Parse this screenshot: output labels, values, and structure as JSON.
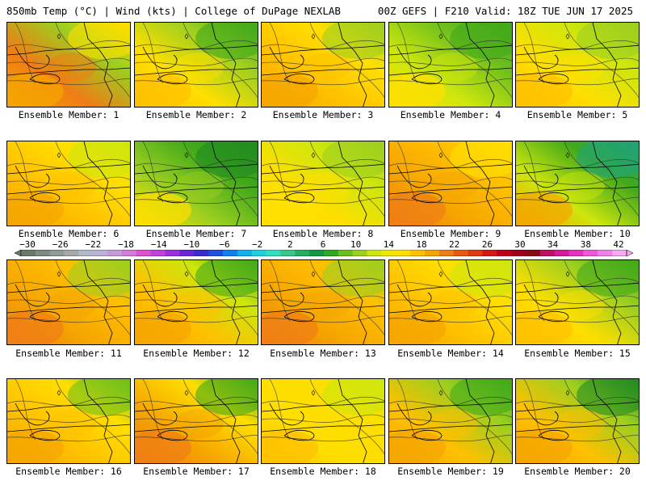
{
  "header": {
    "left_title": "850mb Temp (°C) | Wind (kts) | College of DuPage NEXLAB",
    "right_title": "00Z GEFS | F210 Valid: 18Z TUE JUN 17 2025"
  },
  "members": [
    {
      "label": "Ensemble Member: 1",
      "scheme": [
        "#f5a500",
        "#ef7d15",
        "#9ccf20",
        "#ffdf00"
      ]
    },
    {
      "label": "Ensemble Member: 2",
      "scheme": [
        "#ffc000",
        "#ffdf00",
        "#9ccf20",
        "#41a91a"
      ]
    },
    {
      "label": "Ensemble Member: 3",
      "scheme": [
        "#f5a500",
        "#ffc000",
        "#ffdf00",
        "#9ccf20"
      ]
    },
    {
      "label": "Ensemble Member: 4",
      "scheme": [
        "#ffdf00",
        "#cde60d",
        "#6dbf1d",
        "#41a91a"
      ]
    },
    {
      "label": "Ensemble Member: 5",
      "scheme": [
        "#ffc000",
        "#ffdf00",
        "#cde60d",
        "#9ccf20"
      ]
    },
    {
      "label": "Ensemble Member: 6",
      "scheme": [
        "#f5a500",
        "#ffc000",
        "#ffdf00",
        "#cde60d"
      ]
    },
    {
      "label": "Ensemble Member: 7",
      "scheme": [
        "#ffdf00",
        "#9ccf20",
        "#41a91a",
        "#228b22"
      ]
    },
    {
      "label": "Ensemble Member: 8",
      "scheme": [
        "#ffdf00",
        "#ffdf00",
        "#cde60d",
        "#9ccf20"
      ]
    },
    {
      "label": "Ensemble Member: 9",
      "scheme": [
        "#ef7d15",
        "#f5a500",
        "#ffc000",
        "#ffdf00"
      ]
    },
    {
      "label": "Ensemble Member: 10",
      "scheme": [
        "#f5a500",
        "#cde60d",
        "#41a91a",
        "#1fa37a"
      ]
    },
    {
      "label": "Ensemble Member: 11",
      "scheme": [
        "#ef7d15",
        "#f5a500",
        "#ffc000",
        "#9ccf20"
      ]
    },
    {
      "label": "Ensemble Member: 12",
      "scheme": [
        "#f5a500",
        "#ffc000",
        "#cde60d",
        "#41a91a"
      ]
    },
    {
      "label": "Ensemble Member: 13",
      "scheme": [
        "#ef7d15",
        "#f5a500",
        "#ffc000",
        "#9ccf20"
      ]
    },
    {
      "label": "Ensemble Member: 14",
      "scheme": [
        "#f5a500",
        "#ffc000",
        "#ffdf00",
        "#cde60d"
      ]
    },
    {
      "label": "Ensemble Member: 15",
      "scheme": [
        "#ffc000",
        "#ffdf00",
        "#9ccf20",
        "#41a91a"
      ]
    },
    {
      "label": "Ensemble Member: 16",
      "scheme": [
        "#f5a500",
        "#ffc000",
        "#ffdf00",
        "#6dbf1d"
      ]
    },
    {
      "label": "Ensemble Member: 17",
      "scheme": [
        "#ef7d15",
        "#f5a500",
        "#ffdf00",
        "#41a91a"
      ]
    },
    {
      "label": "Ensemble Member: 18",
      "scheme": [
        "#ffc000",
        "#ffdf00",
        "#ffdf00",
        "#cde60d"
      ]
    },
    {
      "label": "Ensemble Member: 19",
      "scheme": [
        "#f5a500",
        "#ffc000",
        "#9ccf20",
        "#41a91a"
      ]
    },
    {
      "label": "Ensemble Member: 20",
      "scheme": [
        "#f5a500",
        "#ffc000",
        "#9ccf20",
        "#228b22"
      ]
    }
  ],
  "colorbar": {
    "labels": [
      "−30",
      "−26",
      "−22",
      "−18",
      "−14",
      "−10",
      "−6",
      "−2",
      "2",
      "6",
      "10",
      "14",
      "18",
      "22",
      "26",
      "30",
      "34",
      "38",
      "42"
    ],
    "colors": [
      "#6a7a6a",
      "#7f8b80",
      "#8f9b96",
      "#a3aaa8",
      "#b0b8c9",
      "#bdb0d6",
      "#c69ad9",
      "#d67ad9",
      "#e050d0",
      "#c240e0",
      "#9c30e0",
      "#6a25d8",
      "#3a2ad0",
      "#2050e0",
      "#1080f0",
      "#10b0f0",
      "#20d0e0",
      "#30e0c0",
      "#38c88a",
      "#20b060",
      "#119944",
      "#30a820",
      "#6dbf1d",
      "#9ccf20",
      "#cde60d",
      "#f0e800",
      "#ffdf00",
      "#ffc000",
      "#f5a500",
      "#ef7d15",
      "#e85a10",
      "#e03a10",
      "#d81818",
      "#c00018",
      "#a00020",
      "#8a0818",
      "#c01060",
      "#d81898",
      "#e830c0",
      "#f058d8",
      "#f080e8",
      "#f8a8f0"
    ]
  }
}
